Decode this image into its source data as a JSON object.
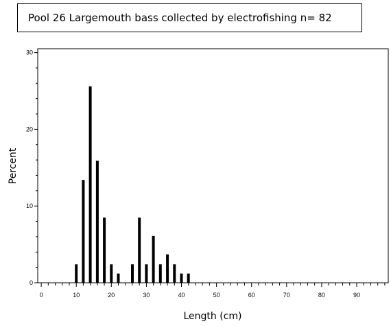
{
  "chart_data": {
    "type": "bar",
    "title": "Pool 26 Largemouth bass collected by electrofishing n= 82",
    "xlabel": "Length (cm)",
    "ylabel": "Percent",
    "xlim": [
      -1,
      99
    ],
    "ylim": [
      0,
      30.5
    ],
    "x_ticks": [
      "0",
      "10",
      "20",
      "30",
      "40",
      "50",
      "60",
      "70",
      "80",
      "90"
    ],
    "y_ticks": [
      "0",
      "10",
      "20",
      "30"
    ],
    "grid": false,
    "legend": "none",
    "bar_color": "#000000",
    "x": [
      10,
      12,
      14,
      16,
      18,
      20,
      22,
      26,
      28,
      30,
      32,
      34,
      36,
      38,
      40,
      42
    ],
    "values": [
      2.4,
      13.4,
      25.6,
      15.9,
      8.5,
      2.4,
      1.2,
      2.4,
      8.5,
      2.4,
      6.1,
      2.4,
      3.7,
      2.4,
      1.2,
      1.2
    ]
  }
}
